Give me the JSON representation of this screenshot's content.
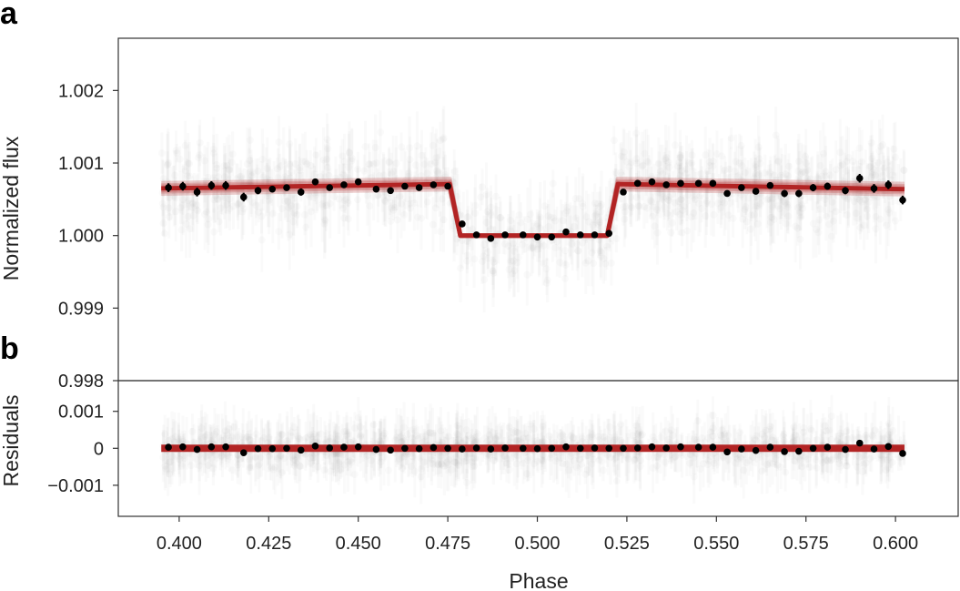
{
  "chart_data": [
    {
      "panel": "a",
      "type": "scatter",
      "ylabel": "Normalized flux",
      "xlim": [
        0.383,
        0.6175
      ],
      "ylim": [
        0.998,
        1.00272
      ],
      "yticks": [
        "1.002",
        "1.001",
        "1.000",
        "0.999",
        "0.998"
      ],
      "ytick_values": [
        1.002,
        1.001,
        1.0,
        0.999,
        0.998
      ],
      "colors": {
        "model": "#b22424",
        "binned": "#000000",
        "raw": "#9a9a9a"
      },
      "model": {
        "name": "transit model",
        "x": [
          0.395,
          0.4755,
          0.4785,
          0.5195,
          0.5225,
          0.6025
        ],
        "y": [
          1.00065,
          1.00071,
          1.0,
          1.0,
          1.00071,
          1.00064
        ]
      },
      "binned": {
        "x": [
          0.397,
          0.401,
          0.405,
          0.409,
          0.413,
          0.418,
          0.422,
          0.426,
          0.43,
          0.434,
          0.438,
          0.442,
          0.446,
          0.45,
          0.455,
          0.459,
          0.463,
          0.467,
          0.471,
          0.475,
          0.479,
          0.483,
          0.487,
          0.491,
          0.496,
          0.5,
          0.504,
          0.508,
          0.512,
          0.516,
          0.52,
          0.524,
          0.528,
          0.532,
          0.536,
          0.54,
          0.545,
          0.549,
          0.553,
          0.557,
          0.561,
          0.565,
          0.569,
          0.573,
          0.577,
          0.581,
          0.586,
          0.59,
          0.594,
          0.598,
          0.602
        ],
        "y": [
          1.00066,
          1.00068,
          1.0006,
          1.00069,
          1.00069,
          1.00053,
          1.00062,
          1.00064,
          1.00066,
          1.0006,
          1.00074,
          1.00066,
          1.0007,
          1.00074,
          1.00064,
          1.00062,
          1.00068,
          1.00066,
          1.0007,
          1.00068,
          1.00016,
          1.00001,
          0.99996,
          1.00001,
          1.00001,
          0.99998,
          0.99998,
          1.00005,
          1.00001,
          1.00001,
          1.00003,
          1.0006,
          1.00072,
          1.00074,
          1.0007,
          1.00072,
          1.00072,
          1.00072,
          1.00058,
          1.00066,
          1.00061,
          1.00069,
          1.00058,
          1.00058,
          1.00066,
          1.00068,
          1.00062,
          1.00079,
          1.00065,
          1.0007,
          1.00049
        ],
        "yerr": [
          6e-05,
          6e-05,
          6e-05,
          6e-05,
          6e-05,
          6e-05,
          5e-05,
          4e-05,
          4e-05,
          5e-05,
          4e-05,
          4e-05,
          4e-05,
          4e-05,
          4e-05,
          4e-05,
          4e-05,
          4e-05,
          4e-05,
          4e-05,
          4e-05,
          4e-05,
          4e-05,
          4e-05,
          4e-05,
          4e-05,
          4e-05,
          4e-05,
          4e-05,
          4e-05,
          4e-05,
          4e-05,
          4e-05,
          4e-05,
          4e-05,
          4e-05,
          4e-05,
          4e-05,
          4e-05,
          4e-05,
          4e-05,
          4e-05,
          5e-05,
          5e-05,
          5e-05,
          5e-05,
          5e-05,
          6e-05,
          6e-05,
          6e-05,
          6e-05
        ]
      }
    },
    {
      "panel": "b",
      "type": "scatter",
      "ylabel": "Residuals",
      "xlabel": "Phase",
      "xlim": [
        0.383,
        0.6175
      ],
      "ylim": [
        -0.00184,
        0.00183
      ],
      "xticks": [
        "0.400",
        "0.425",
        "0.450",
        "0.475",
        "0.500",
        "0.525",
        "0.550",
        "0.575",
        "0.600"
      ],
      "xtick_values": [
        0.4,
        0.425,
        0.45,
        0.475,
        0.5,
        0.525,
        0.55,
        0.575,
        0.6
      ],
      "yticks": [
        "0.001",
        "0",
        "−0.001"
      ],
      "ytick_values": [
        0.001,
        0,
        -0.001
      ],
      "colors": {
        "model": "#b22424",
        "binned": "#000000",
        "raw": "#9a9a9a"
      },
      "model": {
        "name": "zero line",
        "x": [
          0.395,
          0.6025
        ],
        "y": [
          0,
          0
        ]
      },
      "binned": {
        "x": [
          0.397,
          0.401,
          0.405,
          0.409,
          0.413,
          0.418,
          0.422,
          0.426,
          0.43,
          0.434,
          0.438,
          0.442,
          0.446,
          0.45,
          0.455,
          0.459,
          0.463,
          0.467,
          0.471,
          0.475,
          0.479,
          0.483,
          0.487,
          0.491,
          0.496,
          0.5,
          0.504,
          0.508,
          0.512,
          0.516,
          0.52,
          0.524,
          0.528,
          0.532,
          0.536,
          0.54,
          0.545,
          0.549,
          0.553,
          0.557,
          0.561,
          0.565,
          0.569,
          0.573,
          0.577,
          0.581,
          0.586,
          0.59,
          0.594,
          0.598,
          0.602
        ],
        "y": [
          3e-05,
          4e-05,
          -3e-05,
          4e-05,
          4e-05,
          -0.00012,
          -1e-05,
          -1e-05,
          0.0,
          -5e-05,
          6e-05,
          1e-05,
          3e-05,
          4e-05,
          -3e-05,
          -5e-05,
          0.0,
          -1e-05,
          2e-05,
          0.0,
          -2e-05,
          1e-05,
          -2e-05,
          1e-05,
          0.0,
          -1e-05,
          0.0,
          4e-05,
          0.0,
          1e-05,
          0.0,
          0.0,
          1e-05,
          4e-05,
          1e-05,
          4e-05,
          3e-05,
          3e-05,
          -0.0001,
          -2e-05,
          -6e-05,
          3e-05,
          -9e-05,
          -8e-05,
          0.0,
          3e-05,
          -3e-05,
          0.00014,
          -2e-05,
          5e-05,
          -0.00014
        ]
      }
    }
  ],
  "panel_labels": {
    "a": "a",
    "b": "b"
  }
}
